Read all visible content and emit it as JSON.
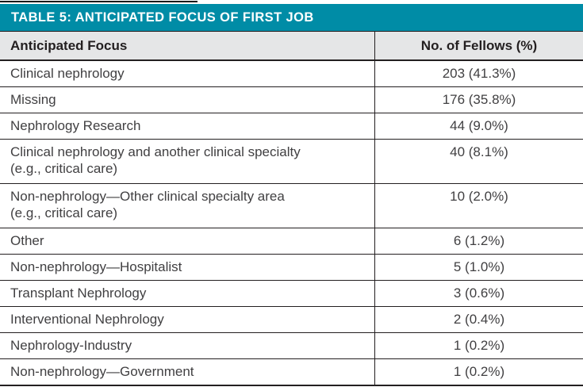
{
  "title_bar": {
    "title": "TABLE 5: ANTICIPATED FOCUS OF FIRST JOB"
  },
  "colors": {
    "accent": "#008CA6",
    "header_bg": "#E5E6E7",
    "line": "#231F20",
    "body_text": "#414042",
    "header_text": "#231F20",
    "title_text": "#FFFFFF"
  },
  "table": {
    "columns": [
      {
        "label": "Anticipated Focus"
      },
      {
        "label": "No. of Fellows (%)"
      }
    ],
    "rows": [
      {
        "focus": "Clinical nephrology",
        "value": "203 (41.3%)"
      },
      {
        "focus": "Missing",
        "value": "176 (35.8%)"
      },
      {
        "focus": "Nephrology Research",
        "value": "44 (9.0%)"
      },
      {
        "focus": "Clinical nephrology and another clinical specialty",
        "note": "(e.g., critical care)",
        "value": "40 (8.1%)"
      },
      {
        "focus": "Non-nephrology—Other clinical specialty area",
        "note": "(e.g., critical care)",
        "value": "10 (2.0%)"
      },
      {
        "focus": "Other",
        "value": "6 (1.2%)"
      },
      {
        "focus": "Non-nephrology—Hospitalist",
        "value": "5 (1.0%)"
      },
      {
        "focus": "Transplant Nephrology",
        "value": "3 (0.6%)"
      },
      {
        "focus": "Interventional Nephrology",
        "value": "2 (0.4%)"
      },
      {
        "focus": "Nephrology-Industry",
        "value": "1 (0.2%)"
      },
      {
        "focus": "Non-nephrology—Government",
        "value": "1 (0.2%)"
      }
    ]
  }
}
